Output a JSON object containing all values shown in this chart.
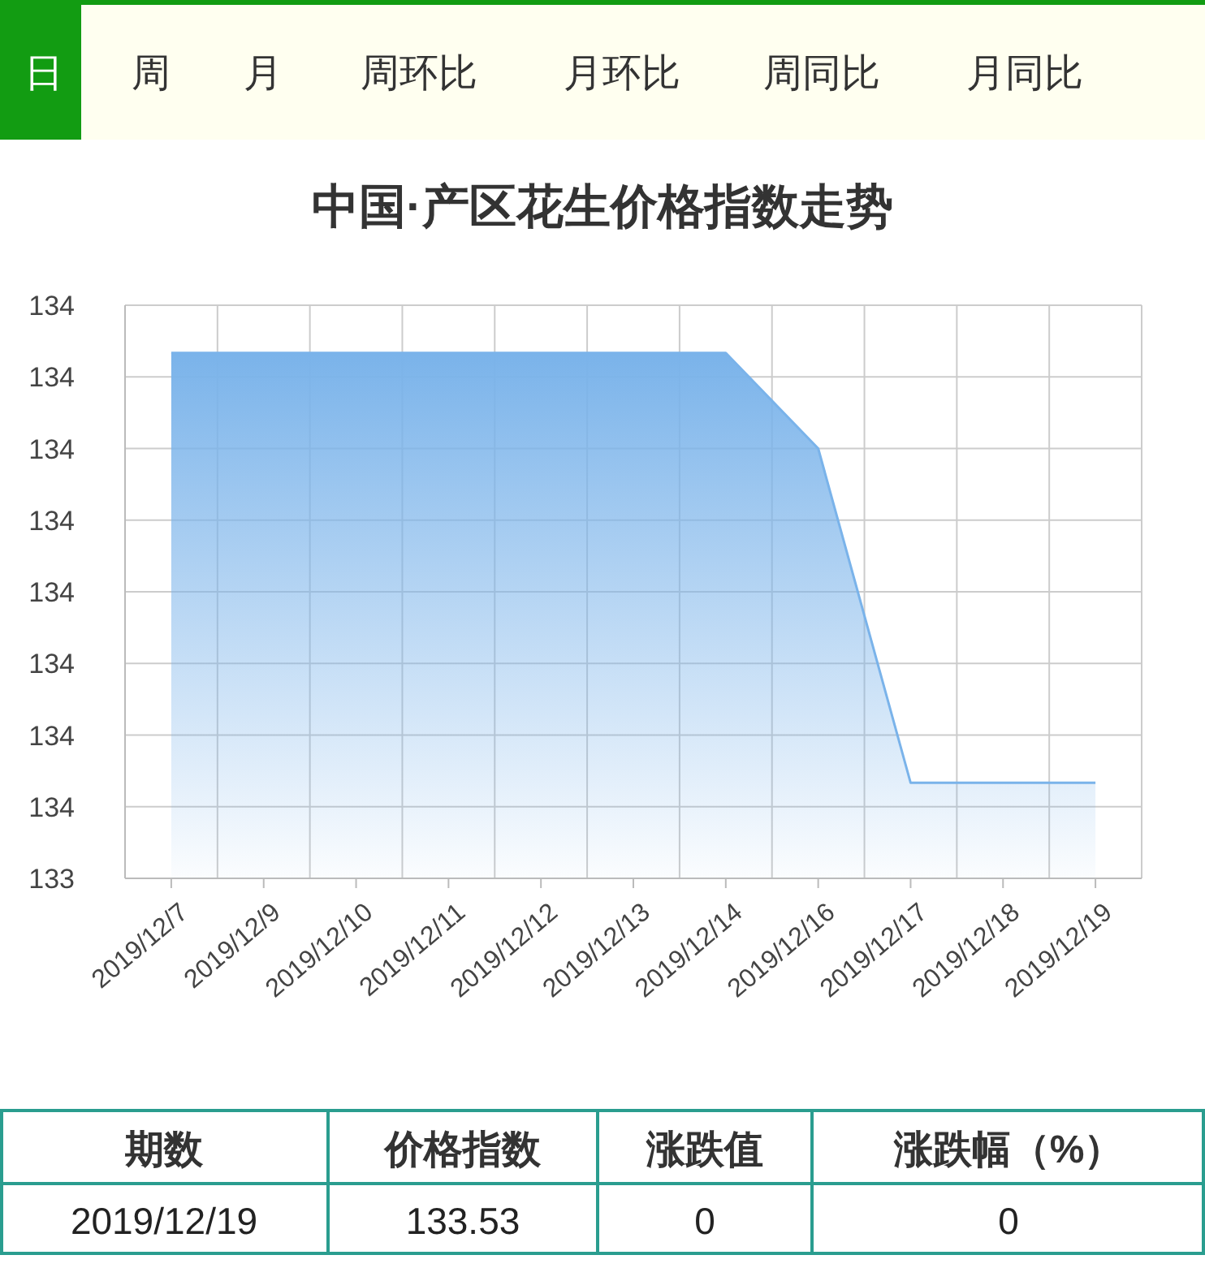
{
  "chart_data": {
    "type": "area",
    "title": "中国·产区花生价格指数走势",
    "categories": [
      "2019/12/7",
      "2019/12/9",
      "2019/12/10",
      "2019/12/11",
      "2019/12/12",
      "2019/12/13",
      "2019/12/14",
      "2019/12/16",
      "2019/12/17",
      "2019/12/18",
      "2019/12/19"
    ],
    "series": [
      {
        "color": "#7ab3ea",
        "values": [
          133.71,
          133.71,
          133.71,
          133.71,
          133.71,
          133.71,
          133.71,
          133.67,
          133.53,
          133.53,
          133.53
        ]
      }
    ],
    "ylim": [
      133.49,
      133.73
    ],
    "yticks": [
      {
        "value": 133.49,
        "label": "133"
      },
      {
        "value": 133.52,
        "label": "134"
      },
      {
        "value": 133.55,
        "label": "134"
      },
      {
        "value": 133.58,
        "label": "134"
      },
      {
        "value": 133.61,
        "label": "134"
      },
      {
        "value": 133.64,
        "label": "134"
      },
      {
        "value": 133.67,
        "label": "134"
      },
      {
        "value": 133.7,
        "label": "134"
      },
      {
        "value": 133.73,
        "label": "134"
      }
    ],
    "grid": true,
    "annotations": [
      "日",
      "周",
      "月",
      "周环比",
      "月环比",
      "周同比",
      "月同比",
      "期数",
      "价格指数",
      "涨跌值",
      "涨跌幅（%）",
      "2019/12/19",
      "133.53",
      "0",
      "0"
    ]
  }
}
